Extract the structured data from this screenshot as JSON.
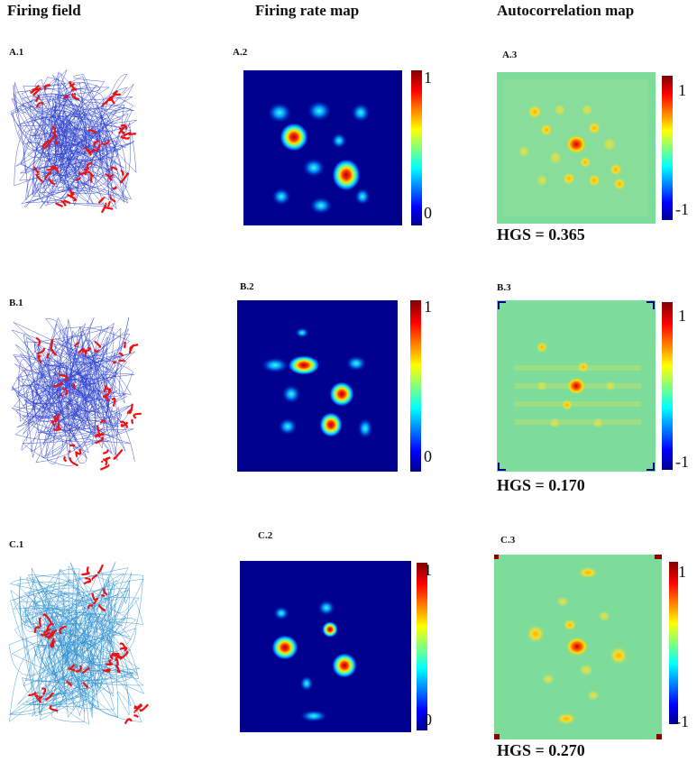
{
  "headers": {
    "col1": "Firing field",
    "col2": "Firing rate map",
    "col3": "Autocorrelation map"
  },
  "rows": [
    {
      "field_label": "A.1",
      "rate_label": "A.2",
      "auto_label": "A.3",
      "rate_cb_max": "1",
      "rate_cb_min": "0",
      "auto_cb_max": "1",
      "auto_cb_min": "-1",
      "hgs": "HGS = 0.365",
      "trajectory_color": "#2a3fd0"
    },
    {
      "field_label": "B.1",
      "rate_label": "B.2",
      "auto_label": "B.3",
      "rate_cb_max": "1",
      "rate_cb_min": "0",
      "auto_cb_max": "1",
      "auto_cb_min": "-1",
      "hgs": "HGS = 0.170",
      "trajectory_color": "#2a3fd0"
    },
    {
      "field_label": "C.1",
      "rate_label": "C.2",
      "auto_label": "C.3",
      "rate_cb_max": "1",
      "rate_cb_min": "0",
      "auto_cb_max": "1",
      "auto_cb_min": "-1",
      "hgs": "HGS = 0.270",
      "trajectory_color": "#2a8fd0"
    }
  ],
  "colors": {
    "rate_background": "#00008f",
    "auto_background": "#7ddc9a",
    "spike_color": "#ee1111"
  }
}
